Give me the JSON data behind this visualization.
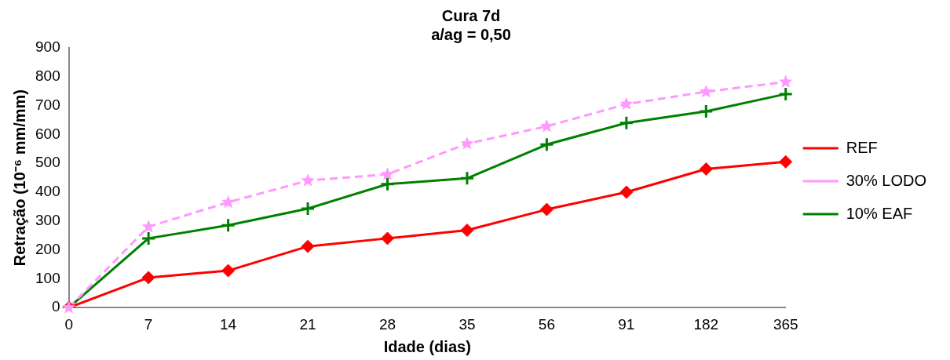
{
  "chart_data": {
    "type": "line",
    "title": "Cura 7d",
    "subtitle": "a/ag = 0,50",
    "xlabel": "Idade (dias)",
    "ylabel": "Retração (10⁻⁶ mm/mm)",
    "categories": [
      "0",
      "7",
      "14",
      "21",
      "28",
      "35",
      "56",
      "91",
      "182",
      "365"
    ],
    "series": [
      {
        "name": "REF",
        "color": "#ff0000",
        "marker": "diamond",
        "line_style": "solid",
        "values": [
          0,
          104,
          128,
          212,
          240,
          268,
          340,
          400,
          480,
          505
        ]
      },
      {
        "name": "30% LODO",
        "color": "#ff99ff",
        "marker": "star",
        "line_style": "dashed",
        "values": [
          0,
          280,
          365,
          440,
          462,
          568,
          628,
          705,
          748,
          782
        ]
      },
      {
        "name": "10% EAF",
        "color": "#008000",
        "marker": "cross",
        "line_style": "solid",
        "values": [
          0,
          240,
          285,
          343,
          428,
          448,
          565,
          640,
          680,
          740
        ]
      }
    ],
    "ylim": [
      0,
      900
    ],
    "yticks": [
      0,
      100,
      200,
      300,
      400,
      500,
      600,
      700,
      800,
      900
    ],
    "grid": false,
    "legend": "right"
  }
}
